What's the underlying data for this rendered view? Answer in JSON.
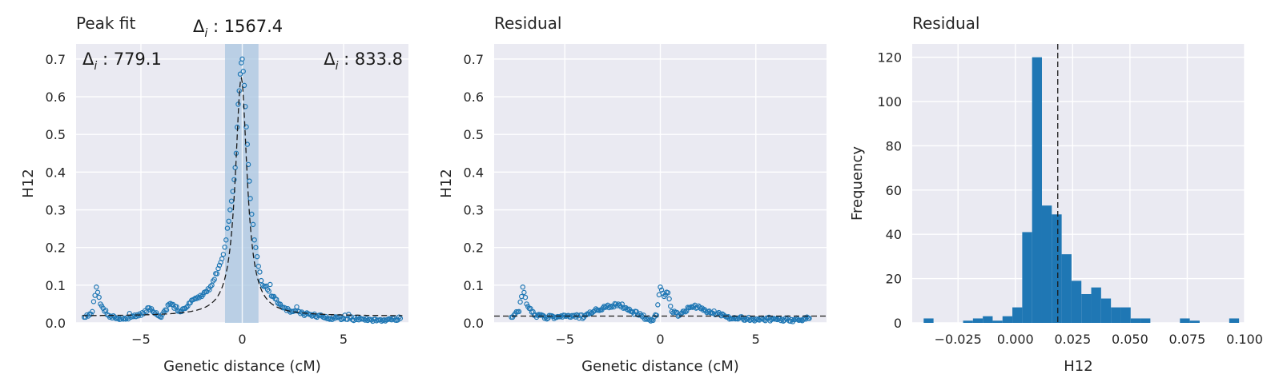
{
  "colors": {
    "background": "#eaeaf2",
    "grid": "#ffffff",
    "points": "#1f77b4",
    "bars": "#1f77b4",
    "fit_line": "#1a1a1a",
    "shaded_region": "#a9c6e0"
  },
  "chart_data": [
    {
      "type": "scatter",
      "title": "Peak fit",
      "xlabel": "Genetic distance (cM)",
      "ylabel": "H12",
      "xlim": [
        -8.2,
        8.2
      ],
      "ylim": [
        0,
        0.74
      ],
      "xticks": [
        -5,
        0,
        5
      ],
      "xtick_labels": [
        "−5",
        "0",
        "5"
      ],
      "yticks": [
        0,
        0.1,
        0.2,
        0.3,
        0.4,
        0.5,
        0.6,
        0.7
      ],
      "ytick_labels": [
        "0.0",
        "0.1",
        "0.2",
        "0.3",
        "0.4",
        "0.5",
        "0.6",
        "0.7"
      ],
      "grid": true,
      "marker": "open-circle",
      "fit": {
        "style": "dashed",
        "peak_x": -0.05,
        "peak_y": 0.65,
        "baseline": 0.018,
        "half_width": 0.35
      },
      "shaded_region": [
        -0.85,
        0.8
      ],
      "center_line_x": 0,
      "annotations": {
        "left": {
          "symbol": "Δ",
          "subscript": "i",
          "value": " : 779.1"
        },
        "center": {
          "symbol": "Δ",
          "subscript": "i",
          "value": " : 1567.4"
        },
        "right": {
          "symbol": "Δ",
          "subscript": "i",
          "value": " : 833.8"
        }
      },
      "data_points_sample": [
        [
          -7.8,
          0.015
        ],
        [
          -7.4,
          0.03
        ],
        [
          -7.2,
          0.095
        ],
        [
          -7.0,
          0.05
        ],
        [
          -6.6,
          0.02
        ],
        [
          -6.0,
          0.01
        ],
        [
          -5.5,
          0.015
        ],
        [
          -5.0,
          0.02
        ],
        [
          -4.6,
          0.04
        ],
        [
          -4.0,
          0.015
        ],
        [
          -3.6,
          0.05
        ],
        [
          -3.0,
          0.03
        ],
        [
          -2.5,
          0.06
        ],
        [
          -2.0,
          0.07
        ],
        [
          -1.5,
          0.1
        ],
        [
          -1.0,
          0.17
        ],
        [
          -0.8,
          0.22
        ],
        [
          -0.6,
          0.3
        ],
        [
          -0.4,
          0.38
        ],
        [
          -0.3,
          0.45
        ],
        [
          -0.2,
          0.58
        ],
        [
          -0.1,
          0.66
        ],
        [
          0.0,
          0.7
        ],
        [
          0.1,
          0.63
        ],
        [
          0.2,
          0.52
        ],
        [
          0.3,
          0.42
        ],
        [
          0.4,
          0.33
        ],
        [
          0.6,
          0.22
        ],
        [
          0.8,
          0.15
        ],
        [
          1.0,
          0.1
        ],
        [
          1.5,
          0.07
        ],
        [
          2.0,
          0.04
        ],
        [
          2.5,
          0.03
        ],
        [
          3.0,
          0.025
        ],
        [
          3.5,
          0.02
        ],
        [
          4.0,
          0.015
        ],
        [
          5.0,
          0.012
        ],
        [
          6.0,
          0.01
        ],
        [
          7.0,
          0.008
        ],
        [
          7.8,
          0.012
        ]
      ]
    },
    {
      "type": "scatter",
      "title": "Residual",
      "xlabel": "Genetic distance (cM)",
      "ylabel": "H12",
      "xlim": [
        -8.7,
        8.7
      ],
      "ylim": [
        0,
        0.74
      ],
      "xticks": [
        -5,
        0,
        5
      ],
      "xtick_labels": [
        "−5",
        "0",
        "5"
      ],
      "yticks": [
        0,
        0.1,
        0.2,
        0.3,
        0.4,
        0.5,
        0.6,
        0.7
      ],
      "ytick_labels": [
        "0.0",
        "0.1",
        "0.2",
        "0.3",
        "0.4",
        "0.5",
        "0.6",
        "0.7"
      ],
      "grid": true,
      "marker": "open-circle",
      "reference_line_y": 0.018,
      "data_points_sample": [
        [
          -7.8,
          0.015
        ],
        [
          -7.4,
          0.03
        ],
        [
          -7.2,
          0.095
        ],
        [
          -7.0,
          0.05
        ],
        [
          -6.6,
          0.02
        ],
        [
          -6.0,
          0.015
        ],
        [
          -5.5,
          0.015
        ],
        [
          -5.0,
          0.02
        ],
        [
          -4.5,
          0.02
        ],
        [
          -4.0,
          0.015
        ],
        [
          -3.5,
          0.03
        ],
        [
          -3.0,
          0.04
        ],
        [
          -2.5,
          0.045
        ],
        [
          -2.2,
          0.05
        ],
        [
          -1.8,
          0.04
        ],
        [
          -1.5,
          0.03
        ],
        [
          -1.0,
          0.02
        ],
        [
          -0.5,
          0.005
        ],
        [
          -0.2,
          0.02
        ],
        [
          0.0,
          0.095
        ],
        [
          0.2,
          0.07
        ],
        [
          0.4,
          0.08
        ],
        [
          0.6,
          0.03
        ],
        [
          1.0,
          0.02
        ],
        [
          1.5,
          0.04
        ],
        [
          2.0,
          0.045
        ],
        [
          2.5,
          0.03
        ],
        [
          3.0,
          0.025
        ],
        [
          3.5,
          0.015
        ],
        [
          4.0,
          0.012
        ],
        [
          5.0,
          0.01
        ],
        [
          6.0,
          0.01
        ],
        [
          7.0,
          0.008
        ],
        [
          7.8,
          0.012
        ]
      ]
    },
    {
      "type": "bar",
      "subtype": "histogram",
      "title": "Residual",
      "xlabel": "H12",
      "ylabel": "Frequency",
      "xlim": [
        -0.045,
        0.1
      ],
      "ylim": [
        0,
        126
      ],
      "xticks": [
        -0.025,
        0,
        0.025,
        0.05,
        0.075,
        0.1
      ],
      "xtick_labels": [
        "−0.025",
        "0.000",
        "0.025",
        "0.050",
        "0.075",
        "0.100"
      ],
      "yticks": [
        0,
        20,
        40,
        60,
        80,
        100,
        120
      ],
      "ytick_labels": [
        "0",
        "20",
        "40",
        "60",
        "80",
        "100",
        "120"
      ],
      "grid": true,
      "bin_width": 0.0043,
      "bin_starts": [
        -0.04,
        -0.0228,
        -0.0185,
        -0.0142,
        -0.0099,
        -0.0056,
        -0.0013,
        0.003,
        0.0073,
        0.0116,
        0.0159,
        0.0202,
        0.0245,
        0.0288,
        0.0331,
        0.0374,
        0.0417,
        0.046,
        0.0503,
        0.0546,
        0.0718,
        0.0761,
        0.0933
      ],
      "values": [
        2,
        1,
        2,
        3,
        1,
        3,
        7,
        41,
        120,
        53,
        49,
        31,
        19,
        13,
        16,
        11,
        7,
        7,
        2,
        2,
        2,
        1,
        2
      ],
      "reference_line_x": 0.0185
    }
  ]
}
